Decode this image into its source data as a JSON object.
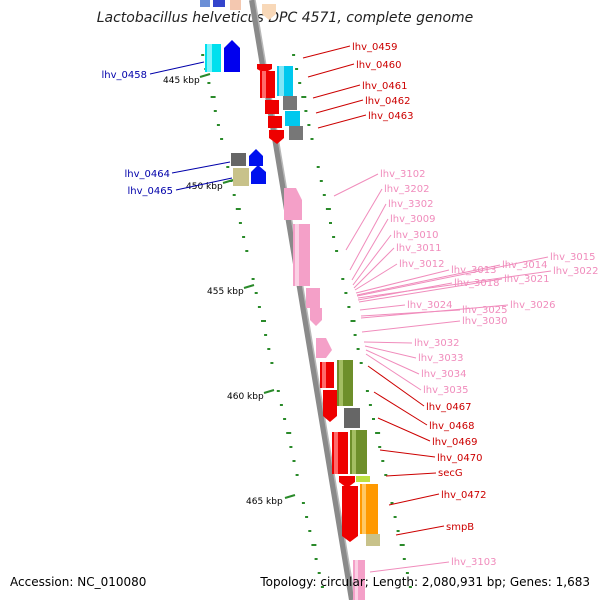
{
  "title": "Lactobacillus helveticus DPC 4571, complete genome",
  "footer": {
    "accession": "Accession: NC_010080",
    "topology": "Topology: circular; Length: 2,080,931 bp; Genes: 1,683"
  },
  "scale_labels": [
    "445 kbp",
    "450 kbp",
    "455 kbp",
    "460 kbp",
    "465 kbp"
  ],
  "colors": {
    "blue_label": "#0000aa",
    "red_label": "#cc0000",
    "pink_label": "#f08cbc",
    "backbone": "#8a8a8a"
  },
  "labels_left": [
    {
      "text": "lhv_0458"
    },
    {
      "text": "lhv_0464"
    },
    {
      "text": "lhv_0465"
    }
  ],
  "labels_red": [
    {
      "text": "lhv_0459"
    },
    {
      "text": "lhv_0460"
    },
    {
      "text": "lhv_0461"
    },
    {
      "text": "lhv_0462"
    },
    {
      "text": "lhv_0463"
    },
    {
      "text": "lhv_0467"
    },
    {
      "text": "lhv_0468"
    },
    {
      "text": "lhv_0469"
    },
    {
      "text": "lhv_0470"
    },
    {
      "text": "secG"
    },
    {
      "text": "lhv_0472"
    },
    {
      "text": "smpB"
    }
  ],
  "labels_pink": [
    {
      "text": "lhv_3102"
    },
    {
      "text": "lhv_3202"
    },
    {
      "text": "lhv_3302"
    },
    {
      "text": "lhv_3009"
    },
    {
      "text": "lhv_3010"
    },
    {
      "text": "lhv_3011"
    },
    {
      "text": "lhv_3012"
    },
    {
      "text": "lhv_3013"
    },
    {
      "text": "lhv_3014"
    },
    {
      "text": "lhv_3015"
    },
    {
      "text": "lhv_3022"
    },
    {
      "text": "lhv_3018"
    },
    {
      "text": "lhv_3021"
    },
    {
      "text": "lhv_3024"
    },
    {
      "text": "lhv_3025"
    },
    {
      "text": "lhv_3026"
    },
    {
      "text": "lhv_3030"
    },
    {
      "text": "lhv_3032"
    },
    {
      "text": "lhv_3033"
    },
    {
      "text": "lhv_3034"
    },
    {
      "text": "lhv_3035"
    },
    {
      "text": "lhv_3103"
    }
  ]
}
